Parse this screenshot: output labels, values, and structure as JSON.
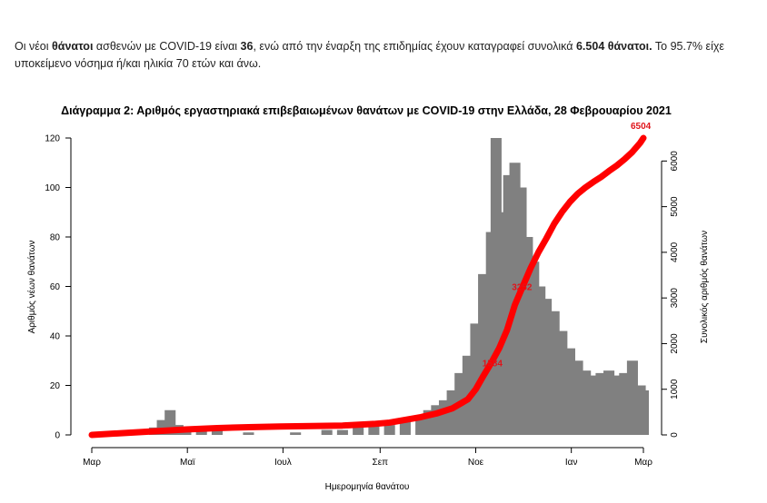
{
  "intro": {
    "p1": "Οι νέοι ",
    "b1": "θάνατοι",
    "p2": " ασθενών με COVID-19 είναι ",
    "b2": "36",
    "p3": ", ενώ από την έναρξη της επιδημίας έχουν καταγραφεί συνολικά ",
    "b3": "6.504 θάνατοι.",
    "p4": " Το 95.7% είχε υποκείμενο νόσημα ή/και ηλικία 70 ετών και άνω."
  },
  "chart_data": {
    "type": "bar",
    "title": "Διάγραμμα 2: Αριθμός εργαστηριακά επιβεβαιωμένων θανάτων με COVID-19 στην Ελλάδα, 28 Φεβρουαρίου 2021",
    "xlabel": "Ημερομηνία θανάτου",
    "ylabel": "Αριθμός νέων θανάτων",
    "y2label": "Συνολικός αριθμός θανάτων",
    "ylim": [
      0,
      120
    ],
    "y2lim": [
      0,
      6504
    ],
    "yticks": [
      "0",
      "20",
      "40",
      "60",
      "80",
      "100",
      "120"
    ],
    "y2ticks": [
      "0",
      "1000",
      "2000",
      "3000",
      "4000",
      "5000",
      "6000"
    ],
    "xticks": [
      "Μαρ",
      "Μαϊ",
      "Ιουλ",
      "Σεπ",
      "Νοε",
      "Ιαν",
      "Μαρ"
    ],
    "bar_color": "#808080",
    "line_color": "#ff0000",
    "annotations": [
      "1584",
      "3252",
      "6504"
    ],
    "series": [
      {
        "kind": "bar",
        "points": [
          [
            0,
            0
          ],
          [
            30,
            2
          ],
          [
            40,
            3
          ],
          [
            45,
            6
          ],
          [
            50,
            10
          ],
          [
            55,
            4
          ],
          [
            60,
            3
          ],
          [
            70,
            2
          ],
          [
            80,
            2
          ],
          [
            100,
            1
          ],
          [
            130,
            1
          ],
          [
            150,
            2
          ],
          [
            160,
            2
          ],
          [
            170,
            3
          ],
          [
            180,
            4
          ],
          [
            190,
            4
          ],
          [
            200,
            6
          ],
          [
            210,
            7
          ],
          [
            215,
            10
          ],
          [
            220,
            12
          ],
          [
            225,
            14
          ],
          [
            230,
            18
          ],
          [
            235,
            25
          ],
          [
            240,
            32
          ],
          [
            245,
            45
          ],
          [
            250,
            65
          ],
          [
            255,
            82
          ],
          [
            258,
            120
          ],
          [
            262,
            90
          ],
          [
            266,
            105
          ],
          [
            270,
            110
          ],
          [
            274,
            100
          ],
          [
            278,
            80
          ],
          [
            282,
            70
          ],
          [
            286,
            60
          ],
          [
            290,
            55
          ],
          [
            295,
            50
          ],
          [
            300,
            42
          ],
          [
            305,
            35
          ],
          [
            310,
            30
          ],
          [
            315,
            26
          ],
          [
            320,
            24
          ],
          [
            325,
            25
          ],
          [
            330,
            26
          ],
          [
            335,
            24
          ],
          [
            340,
            25
          ],
          [
            345,
            30
          ],
          [
            350,
            20
          ],
          [
            352,
            18
          ]
        ]
      },
      {
        "kind": "line",
        "points": [
          [
            0,
            0
          ],
          [
            20,
            40
          ],
          [
            40,
            80
          ],
          [
            60,
            120
          ],
          [
            80,
            150
          ],
          [
            100,
            170
          ],
          [
            120,
            185
          ],
          [
            140,
            195
          ],
          [
            160,
            205
          ],
          [
            180,
            240
          ],
          [
            190,
            270
          ],
          [
            200,
            330
          ],
          [
            210,
            390
          ],
          [
            220,
            470
          ],
          [
            230,
            580
          ],
          [
            240,
            780
          ],
          [
            245,
            1000
          ],
          [
            250,
            1300
          ],
          [
            255,
            1584
          ],
          [
            260,
            1900
          ],
          [
            265,
            2300
          ],
          [
            270,
            2850
          ],
          [
            275,
            3252
          ],
          [
            280,
            3650
          ],
          [
            285,
            4000
          ],
          [
            290,
            4300
          ],
          [
            295,
            4620
          ],
          [
            300,
            4880
          ],
          [
            305,
            5100
          ],
          [
            310,
            5280
          ],
          [
            315,
            5420
          ],
          [
            320,
            5540
          ],
          [
            325,
            5650
          ],
          [
            330,
            5780
          ],
          [
            335,
            5900
          ],
          [
            340,
            6040
          ],
          [
            345,
            6200
          ],
          [
            350,
            6400
          ],
          [
            352,
            6504
          ]
        ]
      }
    ]
  }
}
